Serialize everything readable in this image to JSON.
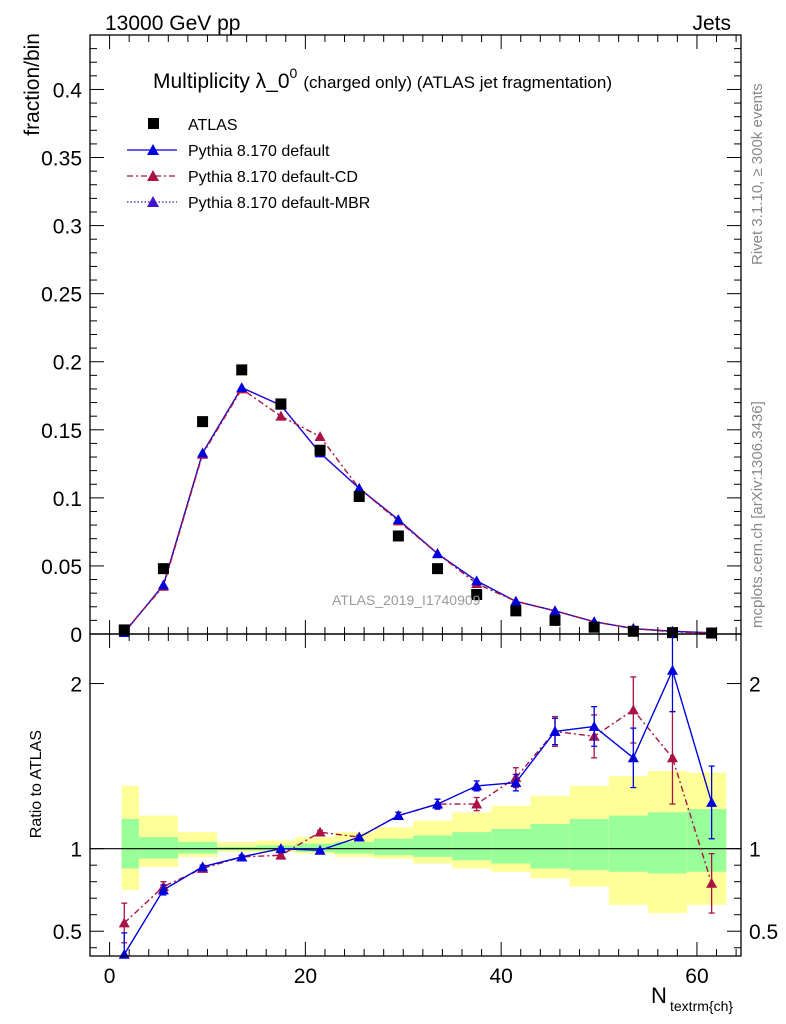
{
  "header": {
    "left": "13000 GeV pp",
    "right": "Jets"
  },
  "side_text": {
    "rivet": "Rivet 3.1.10, ≥ 300k events",
    "mcplots": "mcplots.cern.ch [arXiv:1306.3436]"
  },
  "chart_data": {
    "type": "scatter",
    "title": "Multiplicity λ_0",
    "title_sup": "0",
    "subtitle": "(charged only) (ATLAS jet fragmentation)",
    "watermark": "ATLAS_2019_I1740909",
    "xlabel": "N",
    "xlabel_sub": "textrm{ch}",
    "ylabel": "fraction/bin",
    "ratio_ylabel": "Ratio to ATLAS",
    "xlim": [
      -2,
      64.5
    ],
    "ylim": [
      0,
      0.44
    ],
    "ratio_ylim": [
      0.35,
      2.3
    ],
    "x_ticks": [
      "0",
      "20",
      "40",
      "60"
    ],
    "y_ticks": [
      "0",
      "0.05",
      "0.1",
      "0.15",
      "0.2",
      "0.25",
      "0.3",
      "0.35",
      "0.4"
    ],
    "ratio_ticks": [
      "0.5",
      "1",
      "2"
    ],
    "bins": [
      [
        0,
        3
      ],
      [
        3,
        7
      ],
      [
        7,
        11
      ],
      [
        11,
        15
      ],
      [
        15,
        19
      ],
      [
        19,
        23
      ],
      [
        23,
        27
      ],
      [
        27,
        31
      ],
      [
        31,
        35
      ],
      [
        35,
        39
      ],
      [
        39,
        43
      ],
      [
        43,
        47
      ],
      [
        47,
        51
      ],
      [
        51,
        55
      ],
      [
        55,
        59
      ],
      [
        59,
        63
      ]
    ],
    "x": [
      1.5,
      5.5,
      9.5,
      13.5,
      17.5,
      21.5,
      25.5,
      29.5,
      33.5,
      37.5,
      41.5,
      45.5,
      49.5,
      53.5,
      57.5,
      61.5
    ],
    "legend": [
      "ATLAS",
      "Pythia 8.170 default",
      "Pythia 8.170 default-CD",
      "Pythia 8.170 default-MBR"
    ],
    "series": [
      {
        "name": "ATLAS",
        "color": "#000000",
        "values": [
          0.003,
          0.048,
          0.156,
          0.194,
          0.169,
          0.135,
          0.101,
          0.072,
          0.048,
          0.029,
          0.017,
          0.01,
          0.005,
          0.002,
          0.001,
          0.0007
        ]
      },
      {
        "name": "Pythia 8.170 default",
        "color": "#0000dd",
        "values": [
          0.001,
          0.036,
          0.133,
          0.181,
          0.168,
          0.133,
          0.107,
          0.084,
          0.059,
          0.039,
          0.024,
          0.017,
          0.009,
          0.004,
          0.002,
          0.0009
        ]
      },
      {
        "name": "Pythia 8.170 default-CD",
        "color": "#aa1144",
        "values": [
          0.0017,
          0.035,
          0.132,
          0.18,
          0.16,
          0.145,
          0.107,
          0.083,
          0.059,
          0.037,
          0.024,
          0.017,
          0.009,
          0.004,
          0.0016,
          0.0006
        ]
      },
      {
        "name": "Pythia 8.170 default-MBR",
        "color": "#4411cc",
        "values": [
          0.001,
          0.036,
          0.133,
          0.181,
          0.168,
          0.133,
          0.107,
          0.084,
          0.059,
          0.039,
          0.024,
          0.017,
          0.009,
          0.004,
          0.002,
          0.0009
        ]
      }
    ],
    "ratio_series": [
      {
        "name": "Pythia 8.170 default",
        "color": "#0000dd",
        "dash": "",
        "values": [
          0.36,
          0.75,
          0.89,
          0.95,
          1.0,
          0.99,
          1.07,
          1.2,
          1.27,
          1.38,
          1.4,
          1.71,
          1.74,
          1.55,
          2.08,
          1.28
        ],
        "err": [
          0.13,
          0.03,
          0.01,
          0.01,
          0.01,
          0.01,
          0.01,
          0.02,
          0.03,
          0.03,
          0.05,
          0.08,
          0.12,
          0.18,
          0.25,
          0.22
        ]
      },
      {
        "name": "Pythia 8.170 default-CD",
        "color": "#aa1144",
        "dash": "6,3,2,3",
        "values": [
          0.55,
          0.77,
          0.88,
          0.95,
          0.96,
          1.1,
          1.07,
          1.2,
          1.27,
          1.27,
          1.43,
          1.71,
          1.68,
          1.84,
          1.55,
          0.79
        ],
        "err": [
          0.12,
          0.03,
          0.01,
          0.01,
          0.01,
          0.01,
          0.01,
          0.02,
          0.03,
          0.04,
          0.06,
          0.09,
          0.13,
          0.2,
          0.28,
          0.18
        ]
      }
    ],
    "bands": {
      "inner": [
        [
          0.88,
          1.18
        ],
        [
          0.94,
          1.07
        ],
        [
          0.97,
          1.04
        ],
        [
          0.99,
          1.01
        ],
        [
          0.99,
          1.02
        ],
        [
          0.98,
          1.03
        ],
        [
          0.97,
          1.04
        ],
        [
          0.96,
          1.06
        ],
        [
          0.95,
          1.08
        ],
        [
          0.93,
          1.1
        ],
        [
          0.91,
          1.12
        ],
        [
          0.88,
          1.15
        ],
        [
          0.87,
          1.18
        ],
        [
          0.86,
          1.2
        ],
        [
          0.85,
          1.22
        ],
        [
          0.86,
          1.24
        ]
      ],
      "outer": [
        [
          0.75,
          1.38
        ],
        [
          0.89,
          1.2
        ],
        [
          0.95,
          1.1
        ],
        [
          0.98,
          1.04
        ],
        [
          0.98,
          1.05
        ],
        [
          0.97,
          1.07
        ],
        [
          0.95,
          1.1
        ],
        [
          0.94,
          1.13
        ],
        [
          0.91,
          1.17
        ],
        [
          0.88,
          1.22
        ],
        [
          0.86,
          1.26
        ],
        [
          0.82,
          1.32
        ],
        [
          0.77,
          1.38
        ],
        [
          0.66,
          1.44
        ],
        [
          0.61,
          1.47
        ],
        [
          0.66,
          1.46
        ]
      ]
    }
  }
}
